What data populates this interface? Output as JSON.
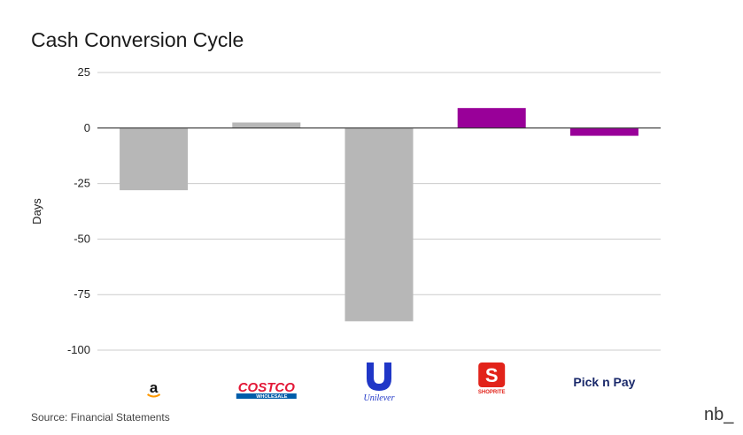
{
  "chart_data": {
    "type": "bar",
    "title": "Cash Conversion Cycle",
    "ylabel": "Days",
    "xlabel": "",
    "ylim": [
      -100,
      25
    ],
    "yticks": [
      25,
      0,
      -25,
      -50,
      -75,
      -100
    ],
    "grid": true,
    "categories": [
      "Amazon",
      "Costco Wholesale",
      "Unilever",
      "Shoprite",
      "Pick n Pay"
    ],
    "values": [
      -28,
      2.5,
      -87,
      9,
      -3.5
    ],
    "colors": [
      "#b7b7b7",
      "#b7b7b7",
      "#b7b7b7",
      "#990099",
      "#990099"
    ],
    "logos": [
      {
        "name": "amazon-logo",
        "text": "a"
      },
      {
        "name": "costco-logo",
        "text": "COSTCO",
        "subtext": "WHOLESALE"
      },
      {
        "name": "unilever-logo",
        "text": "Unilever"
      },
      {
        "name": "shoprite-logo",
        "text": "SHOPRITE"
      },
      {
        "name": "picknpay-logo",
        "text": "Pick n Pay"
      }
    ]
  },
  "source": "Source: Financial Statements",
  "watermark": "nb_"
}
